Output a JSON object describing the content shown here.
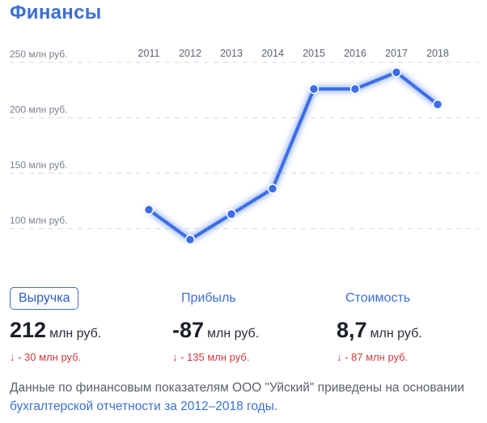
{
  "header": {
    "title": "Финансы"
  },
  "chart_data": {
    "type": "line",
    "categories": [
      "2011",
      "2012",
      "2013",
      "2014",
      "2015",
      "2016",
      "2017",
      "2018"
    ],
    "values": [
      117,
      90,
      113,
      136,
      226,
      226,
      241,
      212
    ],
    "ylim": [
      80,
      260
    ],
    "y_ticks": [
      100,
      150,
      200,
      250
    ],
    "y_tick_labels": [
      "100 млн руб.",
      "150 млн руб.",
      "200 млн руб.",
      "250 млн руб."
    ],
    "grid": true,
    "line_color": "#3b6ee8",
    "title": "",
    "xlabel": "",
    "ylabel": ""
  },
  "metrics": [
    {
      "label": "Выручка",
      "value": "212",
      "unit": "млн руб.",
      "delta": "↓ - 30 млн руб.",
      "active": true
    },
    {
      "label": "Прибыль",
      "value": "-87",
      "unit": "млн руб.",
      "delta": "↓ - 135 млн руб.",
      "active": false
    },
    {
      "label": "Стоимость",
      "value": "8,7",
      "unit": "млн руб.",
      "delta": "↓ - 87 млн руб.",
      "active": false
    }
  ],
  "note": {
    "text_before": "Данные по финансовым показателям ООО \"Уйский\" приведены на основании ",
    "link_text": "бухгалтерской отчетности за 2012–2018 годы",
    "text_after": "."
  },
  "colors": {
    "accent": "#3b6fd6",
    "negative": "#d13a3a"
  }
}
